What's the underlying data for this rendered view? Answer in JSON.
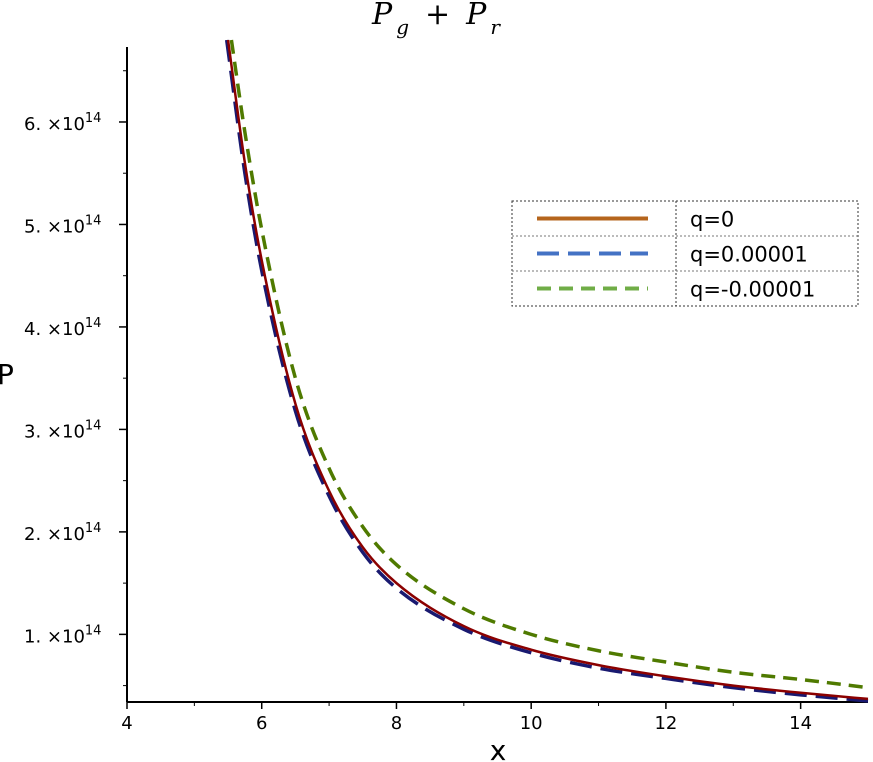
{
  "chart_data": {
    "type": "line",
    "title": {
      "base1": "P",
      "sub1": "g",
      "op": "+",
      "base2": "P",
      "sub2": "r"
    },
    "xlabel": "x",
    "ylabel": "P",
    "xlim": [
      4,
      15
    ],
    "ylim": [
      34000000000000.0,
      680000000000000.0
    ],
    "x_ticks": [
      4,
      6,
      8,
      10,
      12,
      14
    ],
    "x_tick_labels": [
      "4",
      "6",
      "8",
      "10",
      "12",
      "14"
    ],
    "y_ticks": [
      {
        "value": 100000000000000.0,
        "mantissa": "1.",
        "times": "×",
        "base": "10",
        "exp": "14"
      },
      {
        "value": 200000000000000.0,
        "mantissa": "2.",
        "times": "×",
        "base": "10",
        "exp": "14"
      },
      {
        "value": 300000000000000.0,
        "mantissa": "3.",
        "times": "×",
        "base": "10",
        "exp": "14"
      },
      {
        "value": 400000000000000.0,
        "mantissa": "4.",
        "times": "×",
        "base": "10",
        "exp": "14"
      },
      {
        "value": 500000000000000.0,
        "mantissa": "5.",
        "times": "×",
        "base": "10",
        "exp": "14"
      },
      {
        "value": 600000000000000.0,
        "mantissa": "6.",
        "times": "×",
        "base": "10",
        "exp": "14"
      }
    ],
    "legend_placement": "upper-right",
    "grid": false,
    "series": [
      {
        "name": "q=0",
        "color": "#8B0000",
        "legend_color": "#B5651D",
        "dash": "solid",
        "x": [
          5.5,
          5.75,
          6,
          6.5,
          7,
          7.5,
          8,
          9,
          10,
          11,
          12,
          13,
          14,
          15
        ],
        "values": [
          680000000000000.0,
          560000000000000.0,
          465000000000000.0,
          325000000000000.0,
          240000000000000.0,
          185000000000000.0,
          150000000000000.0,
          108000000000000.0,
          85000000000000.0,
          70000000000000.0,
          59000000000000.0,
          50000000000000.0,
          43000000000000.0,
          37000000000000.0
        ]
      },
      {
        "name": "q=0.00001",
        "color": "#191970",
        "legend_color": "#4472C4",
        "dash": "long-dash",
        "x": [
          5.48,
          5.75,
          6,
          6.5,
          7,
          7.5,
          8,
          9,
          10,
          11,
          12,
          13,
          14,
          15
        ],
        "values": [
          680000000000000.0,
          550000000000000.0,
          455000000000000.0,
          318000000000000.0,
          235000000000000.0,
          180000000000000.0,
          145000000000000.0,
          105000000000000.0,
          82000000000000.0,
          67000000000000.0,
          57000000000000.0,
          48000000000000.0,
          41000000000000.0,
          35000000000000.0
        ]
      },
      {
        "name": "q=-0.00001",
        "color": "#4F7A00",
        "legend_color": "#70AD47",
        "dash": "dash",
        "x": [
          5.55,
          5.75,
          6,
          6.5,
          7,
          7.5,
          8,
          9,
          10,
          11,
          12,
          13,
          14,
          15
        ],
        "values": [
          680000000000000.0,
          590000000000000.0,
          495000000000000.0,
          350000000000000.0,
          262000000000000.0,
          205000000000000.0,
          168000000000000.0,
          125000000000000.0,
          100000000000000.0,
          84000000000000.0,
          73000000000000.0,
          63000000000000.0,
          56000000000000.0,
          48000000000000.0
        ]
      }
    ]
  }
}
